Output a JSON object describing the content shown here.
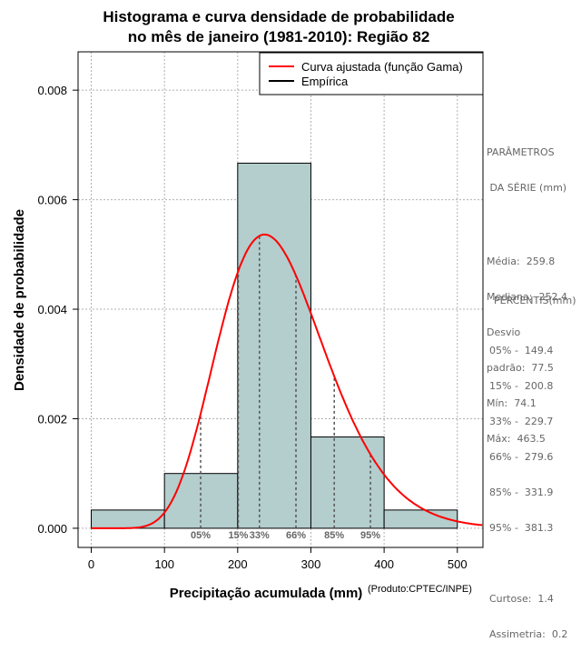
{
  "chart_data": {
    "type": "bar",
    "title_line1": "Histograma e curva densidade de probabilidade",
    "title_line2": "no mês de janeiro (1981-2010): Região 82",
    "xlabel": "Precipitação acumulada (mm)",
    "ylabel": "Densidade de probabilidade",
    "credit": "(Produto:CPTEC/INPE)",
    "xlim": [
      -18,
      535
    ],
    "ylim": [
      -0.00035,
      0.0087
    ],
    "x_ticks": [
      0,
      100,
      200,
      300,
      400,
      500
    ],
    "x_tick_labels": [
      "0",
      "100",
      "200",
      "300",
      "400",
      "500"
    ],
    "y_ticks": [
      0,
      0.002,
      0.004,
      0.006,
      0.008
    ],
    "y_tick_labels": [
      "0.000",
      "0.002",
      "0.004",
      "0.006",
      "0.008"
    ],
    "grid": true,
    "bins": [
      {
        "x0": 0,
        "x1": 100,
        "density": 0.000333
      },
      {
        "x0": 100,
        "x1": 200,
        "density": 0.001
      },
      {
        "x0": 200,
        "x1": 300,
        "density": 0.006667
      },
      {
        "x0": 300,
        "x1": 400,
        "density": 0.001667
      },
      {
        "x0": 400,
        "x1": 500,
        "density": 0.000333
      }
    ],
    "gamma_fit": {
      "shape": 11.3,
      "rate": 0.0435
    },
    "percentile_markers": [
      {
        "label": "05%",
        "value": 149.4
      },
      {
        "label": "15%",
        "value": 200.8
      },
      {
        "label": "33%",
        "value": 229.7
      },
      {
        "label": "66%",
        "value": 279.6
      },
      {
        "label": "85%",
        "value": 331.9
      },
      {
        "label": "95%",
        "value": 381.3
      }
    ],
    "legend": [
      {
        "label": "Curva ajustada (função Gama)",
        "color": "#ff0000"
      },
      {
        "label": "Empírica",
        "color": "#000000"
      }
    ],
    "legend_position": "top-right"
  },
  "stats": {
    "heading_line1": "PARÂMETROS",
    "heading_line2": " DA SÉRIE (mm)",
    "rows": [
      "Média:  259.8",
      "Mediana:  252.4",
      "Desvio",
      "padrão:  77.5",
      "Mín:  74.1",
      "Máx:  463.5"
    ]
  },
  "percentis": {
    "heading": "PERCENTIS(mm)",
    "rows": [
      "05% -  149.4",
      "15% -  200.8",
      "33% -  229.7",
      "66% -  279.6",
      "85% -  331.9",
      "95% -  381.3"
    ],
    "curtose": "Curtose:  1.4",
    "assimetria": "Assimetria:  0.2"
  },
  "colors": {
    "bar_fill": "#b4cdcd",
    "curve": "#ff0000",
    "percentile_line": "#555555",
    "grid": "#b0b0b0"
  }
}
